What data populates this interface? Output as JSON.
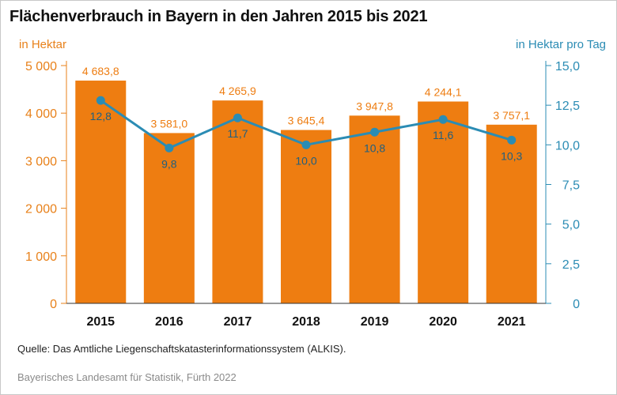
{
  "title": "Flächenverbrauch in Bayern in den Jahren 2015 bis 2021",
  "source": "Quelle: Das Amtliche Liegenschaftskatasterinformationssystem (ALKIS).",
  "footer": "Bayerisches Landesamt für Statistik, Fürth 2022",
  "colors": {
    "bar": "#ee7d11",
    "bar_label": "#ee7d11",
    "line": "#2b8cb4",
    "line_label": "#1f5f80",
    "left_axis": "#e8811a",
    "right_axis": "#2b8cb4"
  },
  "chart_data": {
    "type": "bar",
    "categories": [
      "2015",
      "2016",
      "2017",
      "2018",
      "2019",
      "2020",
      "2021"
    ],
    "series": [
      {
        "type": "bar",
        "axis": "left",
        "values": [
          4683.8,
          3581.0,
          4265.9,
          3645.4,
          3947.8,
          4244.1,
          3757.1
        ],
        "labels": [
          "4 683,8",
          "3 581,0",
          "4 265,9",
          "3 645,4",
          "3 947,8",
          "4 244,1",
          "3 757,1"
        ]
      },
      {
        "type": "line",
        "axis": "right",
        "values": [
          12.8,
          9.8,
          11.7,
          10.0,
          10.8,
          11.6,
          10.3
        ],
        "labels": [
          "12,8",
          "9,8",
          "11,7",
          "10,0",
          "10,8",
          "11,6",
          "10,3"
        ]
      }
    ],
    "ylabel": "in Hektar",
    "ylabel_right": "in Hektar pro Tag",
    "ylim": [
      0,
      5000
    ],
    "ylim_right": [
      0,
      15
    ],
    "yticks": [
      0,
      1000,
      2000,
      3000,
      4000,
      5000
    ],
    "ytick_labels": [
      "0",
      "1 000",
      "2 000",
      "3 000",
      "4 000",
      "5 000"
    ],
    "yticks_right": [
      0,
      2.5,
      5,
      7.5,
      10,
      12.5,
      15
    ],
    "ytick_labels_right": [
      "0",
      "2,5",
      "5,0",
      "7,5",
      "10,0",
      "12,5",
      "15,0"
    ],
    "grid": false,
    "legend": "none"
  }
}
